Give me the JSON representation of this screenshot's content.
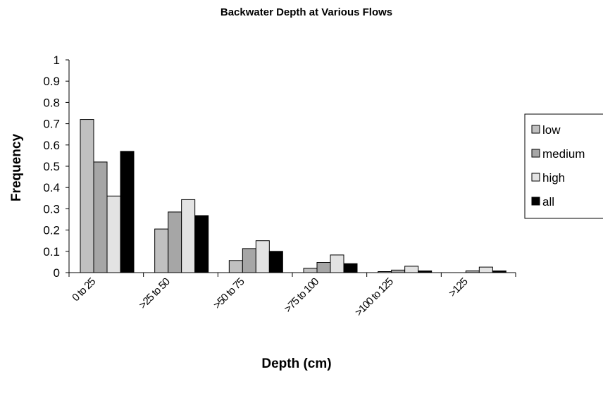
{
  "chart_data": {
    "type": "bar",
    "title": "Backwater Depth at Various Flows",
    "xlabel": "Depth (cm)",
    "ylabel": "Frequency",
    "ylim": [
      0,
      1
    ],
    "yticks": [
      "0",
      "0.1",
      "0.2",
      "0.3",
      "0.4",
      "0.5",
      "0.6",
      "0.7",
      "0.8",
      "0.9",
      "1"
    ],
    "grid": false,
    "legend_position": "right",
    "categories": [
      "0 to 25",
      ">25 to 50",
      ">50 to 75",
      ">75 to 100",
      ">100 to 125",
      ">125"
    ],
    "series": [
      {
        "name": "low",
        "color": "#c0c0c0",
        "values": [
          0.72,
          0.205,
          0.057,
          0.02,
          0.005,
          0.0
        ]
      },
      {
        "name": "medium",
        "color": "#a6a6a6",
        "values": [
          0.52,
          0.285,
          0.113,
          0.048,
          0.012,
          0.008
        ]
      },
      {
        "name": "high",
        "color": "#e3e3e3",
        "values": [
          0.36,
          0.343,
          0.15,
          0.083,
          0.03,
          0.026
        ]
      },
      {
        "name": "all",
        "color": "#000000",
        "values": [
          0.57,
          0.268,
          0.1,
          0.042,
          0.008,
          0.008
        ]
      }
    ]
  }
}
